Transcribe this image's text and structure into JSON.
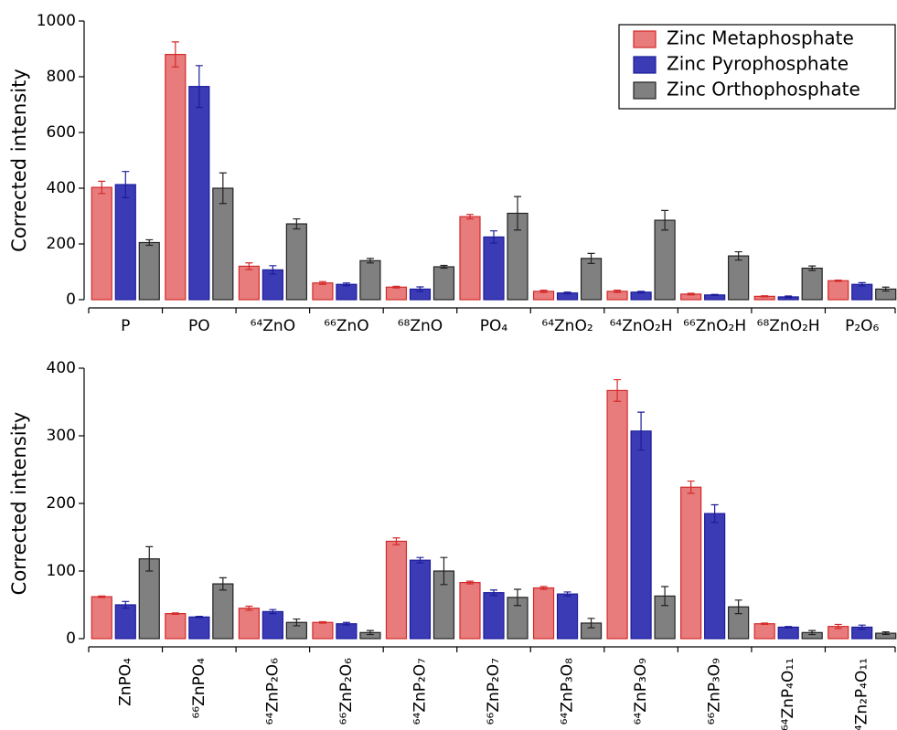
{
  "chart_data": [
    {
      "type": "bar",
      "ylabel": "Corrected intensity",
      "legend": "upper right",
      "categories": [
        "P",
        "PO",
        "⁶⁴ZnO",
        "⁶⁶ZnO",
        "⁶⁸ZnO",
        "PO₄",
        "⁶⁴ZnO₂",
        "⁶⁴ZnO₂H",
        "⁶⁶ZnO₂H",
        "⁶⁸ZnO₂H",
        "P₂O₆"
      ],
      "series": [
        {
          "name": "Zinc Metaphosphate",
          "color": "#e87b7b",
          "edgecolor": "#d42a2a",
          "values": [
            403,
            880,
            120,
            60,
            45,
            298,
            30,
            30,
            20,
            12,
            68
          ],
          "errors": [
            22,
            45,
            12,
            5,
            3,
            8,
            4,
            4,
            3,
            2,
            2
          ]
        },
        {
          "name": "Zinc Pyrophosphate",
          "color": "#3b3bb5",
          "edgecolor": "#1c1c9c",
          "values": [
            413,
            765,
            107,
            55,
            38,
            225,
            24,
            27,
            17,
            10,
            55
          ],
          "errors": [
            47,
            75,
            15,
            5,
            8,
            22,
            3,
            3,
            2,
            3,
            6
          ]
        },
        {
          "name": "Zinc Orthophosphate",
          "color": "#808080",
          "edgecolor": "#222222",
          "values": [
            205,
            400,
            272,
            140,
            118,
            310,
            148,
            285,
            157,
            113,
            38
          ],
          "errors": [
            10,
            55,
            18,
            8,
            5,
            60,
            18,
            35,
            15,
            8,
            7
          ]
        }
      ],
      "ylim": [
        0,
        1000
      ],
      "yticks": [
        0,
        200,
        400,
        600,
        800,
        1000
      ]
    },
    {
      "type": "bar",
      "ylabel": "Corrected intensity",
      "categories": [
        "ZnPO₄",
        "⁶⁶ZnPO₄",
        "⁶⁴ZnP₂O₆",
        "⁶⁶ZnP₂O₆",
        "⁶⁴ZnP₂O₇",
        "⁶⁶ZnP₂O₇",
        "⁶⁴ZnP₃O₈",
        "⁶⁴ZnP₃O₉",
        "⁶⁶ZnP₃O₉",
        "⁶⁴ZnP₄O₁₁",
        "⁶⁴Zn₂P₄O₁₁"
      ],
      "series": [
        {
          "color": "#e87b7b",
          "edgecolor": "#d42a2a",
          "values": [
            62,
            37,
            45,
            24,
            144,
            83,
            75,
            367,
            224,
            22,
            18
          ],
          "errors": [
            1,
            1,
            3,
            1,
            5,
            2,
            2,
            16,
            9,
            1,
            3
          ]
        },
        {
          "color": "#3b3bb5",
          "edgecolor": "#1c1c9c",
          "values": [
            50,
            32,
            40,
            22,
            116,
            68,
            66,
            307,
            185,
            17,
            17
          ],
          "errors": [
            5,
            1,
            3,
            2,
            4,
            4,
            3,
            28,
            13,
            1,
            3
          ]
        },
        {
          "color": "#808080",
          "edgecolor": "#222222",
          "values": [
            118,
            81,
            24,
            9,
            100,
            61,
            23,
            63,
            47,
            9,
            8
          ],
          "errors": [
            18,
            9,
            5,
            3,
            20,
            12,
            7,
            14,
            10,
            3,
            2
          ]
        }
      ],
      "ylim": [
        0,
        400
      ],
      "yticks": [
        0,
        100,
        200,
        300,
        400
      ]
    }
  ]
}
